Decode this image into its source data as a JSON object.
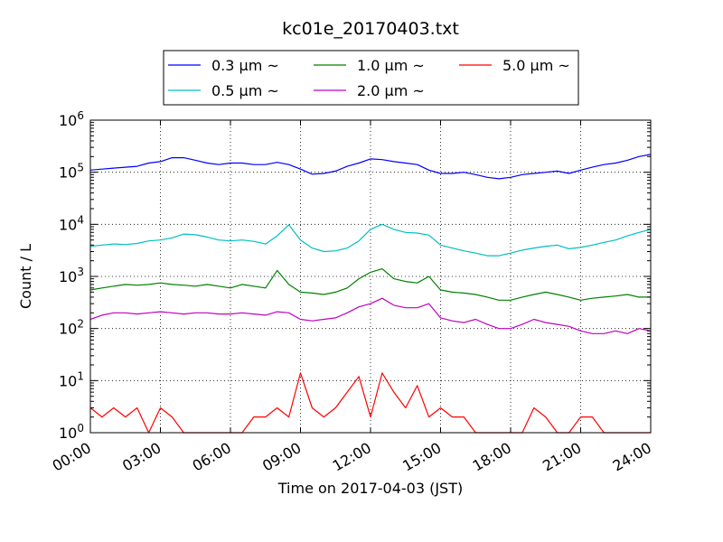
{
  "chart_data": {
    "type": "line",
    "title": "kc01e_20170403.txt",
    "xlabel": "Time on 2017-04-03 (JST)",
    "ylabel": "Count / L",
    "y_scale": "log",
    "ylim": [
      1,
      1000000
    ],
    "y_ticks": [
      {
        "value": 1,
        "base": "10",
        "exp": "0"
      },
      {
        "value": 10,
        "base": "10",
        "exp": "1"
      },
      {
        "value": 100,
        "base": "10",
        "exp": "2"
      },
      {
        "value": 1000,
        "base": "10",
        "exp": "3"
      },
      {
        "value": 10000,
        "base": "10",
        "exp": "4"
      },
      {
        "value": 100000,
        "base": "10",
        "exp": "5"
      },
      {
        "value": 1000000,
        "base": "10",
        "exp": "6"
      }
    ],
    "xlim": [
      "00:00",
      "24:00"
    ],
    "x_ticks": [
      "00:00",
      "03:00",
      "06:00",
      "09:00",
      "12:00",
      "15:00",
      "18:00",
      "21:00",
      "24:00"
    ],
    "grid": true,
    "legend_position": "top-center",
    "x": [
      "00:00",
      "00:30",
      "01:00",
      "01:30",
      "02:00",
      "02:30",
      "03:00",
      "03:30",
      "04:00",
      "04:30",
      "05:00",
      "05:30",
      "06:00",
      "06:30",
      "07:00",
      "07:30",
      "08:00",
      "08:30",
      "09:00",
      "09:30",
      "10:00",
      "10:30",
      "11:00",
      "11:30",
      "12:00",
      "12:30",
      "13:00",
      "13:30",
      "14:00",
      "14:30",
      "15:00",
      "15:30",
      "16:00",
      "16:30",
      "17:00",
      "17:30",
      "18:00",
      "18:30",
      "19:00",
      "19:30",
      "20:00",
      "20:30",
      "21:00",
      "21:30",
      "22:00",
      "22:30",
      "23:00",
      "23:30",
      "24:00"
    ],
    "series": [
      {
        "name": "0.3 μm ~",
        "color": "#0000ff",
        "values": [
          110000,
          115000,
          120000,
          125000,
          130000,
          150000,
          160000,
          190000,
          190000,
          170000,
          150000,
          140000,
          150000,
          150000,
          140000,
          140000,
          155000,
          140000,
          115000,
          92000,
          95000,
          105000,
          130000,
          150000,
          180000,
          175000,
          160000,
          150000,
          140000,
          110000,
          95000,
          95000,
          100000,
          90000,
          80000,
          75000,
          80000,
          90000,
          95000,
          100000,
          105000,
          95000,
          110000,
          125000,
          140000,
          150000,
          170000,
          200000,
          220000
        ]
      },
      {
        "name": "0.5 μm ~",
        "color": "#00bfbf",
        "values": [
          3800,
          4000,
          4200,
          4100,
          4300,
          4800,
          5000,
          5500,
          6500,
          6300,
          5700,
          5000,
          4800,
          5000,
          4700,
          4200,
          6000,
          9800,
          5000,
          3500,
          3000,
          3100,
          3500,
          4800,
          8000,
          10000,
          8000,
          7000,
          6800,
          6200,
          4000,
          3500,
          3100,
          2800,
          2500,
          2500,
          2800,
          3200,
          3500,
          3800,
          4000,
          3400,
          3600,
          4000,
          4500,
          5000,
          6000,
          7000,
          8000
        ]
      },
      {
        "name": "1.0 μm ~",
        "color": "#008000",
        "values": [
          550,
          600,
          650,
          700,
          680,
          700,
          750,
          700,
          680,
          650,
          700,
          650,
          600,
          700,
          650,
          600,
          1300,
          700,
          500,
          480,
          450,
          500,
          600,
          900,
          1200,
          1400,
          900,
          800,
          750,
          1000,
          550,
          500,
          480,
          450,
          400,
          350,
          350,
          400,
          450,
          500,
          450,
          400,
          350,
          380,
          400,
          420,
          450,
          400,
          400
        ]
      },
      {
        "name": "2.0 μm ~",
        "color": "#bf00bf",
        "values": [
          150,
          180,
          200,
          200,
          190,
          200,
          210,
          200,
          190,
          200,
          200,
          190,
          190,
          200,
          190,
          180,
          210,
          200,
          150,
          140,
          150,
          160,
          200,
          260,
          300,
          380,
          280,
          250,
          250,
          300,
          160,
          140,
          130,
          150,
          120,
          100,
          100,
          120,
          150,
          130,
          120,
          110,
          90,
          80,
          80,
          90,
          80,
          100,
          90
        ]
      },
      {
        "name": "5.0 μm ~",
        "color": "#ff0000",
        "values": [
          3,
          2,
          3,
          2,
          3,
          1,
          3,
          2,
          1,
          1,
          1,
          1,
          1,
          1,
          2,
          2,
          3,
          2,
          14,
          3,
          2,
          3,
          6,
          12,
          2,
          14,
          6,
          3,
          8,
          2,
          3,
          2,
          2,
          1,
          1,
          1,
          1,
          1,
          3,
          2,
          1,
          1,
          2,
          2,
          1,
          1,
          1,
          1,
          1
        ]
      }
    ]
  }
}
